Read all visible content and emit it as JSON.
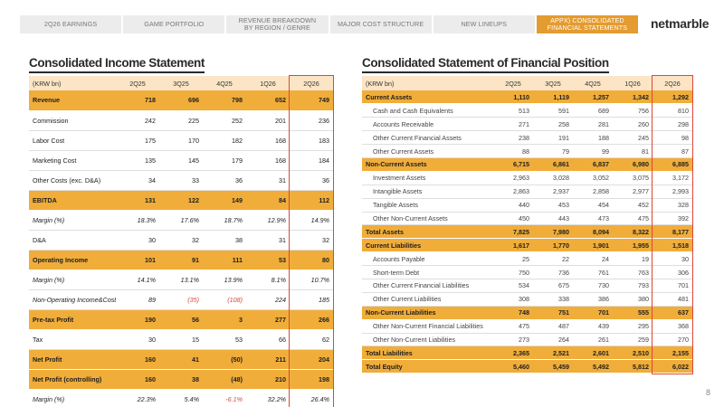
{
  "nav": {
    "tabs": [
      {
        "label": "2Q26  EARNINGS",
        "active": false
      },
      {
        "label": "GAME PORTFOLIO",
        "active": false
      },
      {
        "label": "REVENUE BREAKDOWN\nBY REGION / GENRE",
        "active": false
      },
      {
        "label": "MAJOR COST STRUCTURE",
        "active": false
      },
      {
        "label": "NEW LINEUPS",
        "active": false
      },
      {
        "label": "APPX) CONSOLIDATED\nFINANCIAL STATEMENTS",
        "active": true
      }
    ]
  },
  "logo": {
    "text": "netmarble",
    "icon": "netmarble-logo-icon",
    "color": "#e49b2f"
  },
  "income": {
    "title": "Consolidated Income Statement",
    "unit": "(KRW bn)",
    "columns": [
      "2Q25",
      "3Q25",
      "4Q25",
      "1Q26",
      "2Q26"
    ],
    "rows": [
      {
        "label": "Revenue",
        "values": [
          "718",
          "696",
          "798",
          "652",
          "749"
        ],
        "style": "hl"
      },
      {
        "label": "Commission",
        "values": [
          "242",
          "225",
          "252",
          "201",
          "236"
        ],
        "style": ""
      },
      {
        "label": "Labor Cost",
        "values": [
          "175",
          "170",
          "182",
          "168",
          "183"
        ],
        "style": ""
      },
      {
        "label": "Marketing Cost",
        "values": [
          "135",
          "145",
          "179",
          "168",
          "184"
        ],
        "style": ""
      },
      {
        "label": "Other Costs (exc. D&A)",
        "values": [
          "34",
          "33",
          "36",
          "31",
          "36"
        ],
        "style": ""
      },
      {
        "label": "EBITDA",
        "values": [
          "131",
          "122",
          "149",
          "84",
          "112"
        ],
        "style": "hl"
      },
      {
        "label": "Margin (%)",
        "values": [
          "18.3%",
          "17.6%",
          "18.7%",
          "12.9%",
          "14.9%"
        ],
        "style": "ital"
      },
      {
        "label": "D&A",
        "values": [
          "30",
          "32",
          "38",
          "31",
          "32"
        ],
        "style": ""
      },
      {
        "label": "Operating Income",
        "values": [
          "101",
          "91",
          "111",
          "53",
          "80"
        ],
        "style": "hl"
      },
      {
        "label": "Margin (%)",
        "values": [
          "14.1%",
          "13.1%",
          "13.9%",
          "8.1%",
          "10.7%"
        ],
        "style": "ital"
      },
      {
        "label": "Non-Operating Income&Cost",
        "values": [
          "89",
          "(35)",
          "(108)",
          "224",
          "185"
        ],
        "style": "ital"
      },
      {
        "label": "Pre-tax Profit",
        "values": [
          "190",
          "56",
          "3",
          "277",
          "266"
        ],
        "style": "hl"
      },
      {
        "label": "Tax",
        "values": [
          "30",
          "15",
          "53",
          "66",
          "62"
        ],
        "style": ""
      },
      {
        "label": "Net Profit",
        "values": [
          "160",
          "41",
          "(50)",
          "211",
          "204"
        ],
        "style": "hl"
      },
      {
        "label": "Net Profit (controlling)",
        "values": [
          "160",
          "38",
          "(48)",
          "210",
          "198"
        ],
        "style": "hl"
      },
      {
        "label": "Margin (%)",
        "values": [
          "22.3%",
          "5.4%",
          "-6.1%",
          "32.2%",
          "26.4%"
        ],
        "style": "ital"
      }
    ]
  },
  "balance": {
    "title": "Consolidated Statement of Financial Position",
    "unit": "(KRW bn)",
    "columns": [
      "2Q25",
      "3Q25",
      "4Q25",
      "1Q26",
      "2Q26"
    ],
    "rows": [
      {
        "label": "Current Assets",
        "values": [
          "1,110",
          "1,119",
          "1,257",
          "1,342",
          "1,292"
        ],
        "style": "hl"
      },
      {
        "label": "Cash and Cash Equivalents",
        "values": [
          "513",
          "591",
          "689",
          "756",
          "810"
        ],
        "style": "sub"
      },
      {
        "label": "Accounts Receivable",
        "values": [
          "271",
          "258",
          "281",
          "260",
          "298"
        ],
        "style": "sub"
      },
      {
        "label": "Other Current Financial Assets",
        "values": [
          "238",
          "191",
          "188",
          "245",
          "98"
        ],
        "style": "sub"
      },
      {
        "label": "Other Current Assets",
        "values": [
          "88",
          "79",
          "99",
          "81",
          "87"
        ],
        "style": "sub"
      },
      {
        "label": "Non-Current Assets",
        "values": [
          "6,715",
          "6,861",
          "6,837",
          "6,980",
          "6,885"
        ],
        "style": "hl"
      },
      {
        "label": "Investment Assets",
        "values": [
          "2,963",
          "3,028",
          "3,052",
          "3,075",
          "3,172"
        ],
        "style": "sub"
      },
      {
        "label": "Intangible Assets",
        "values": [
          "2,863",
          "2,937",
          "2,858",
          "2,977",
          "2,993"
        ],
        "style": "sub"
      },
      {
        "label": "Tangible Assets",
        "values": [
          "440",
          "453",
          "454",
          "452",
          "328"
        ],
        "style": "sub"
      },
      {
        "label": "Other Non-Current Assets",
        "values": [
          "450",
          "443",
          "473",
          "475",
          "392"
        ],
        "style": "sub"
      },
      {
        "label": "Total Assets",
        "values": [
          "7,825",
          "7,980",
          "8,094",
          "8,322",
          "8,177"
        ],
        "style": "hl"
      },
      {
        "label": "Current Liabilities",
        "values": [
          "1,617",
          "1,770",
          "1,901",
          "1,955",
          "1,518"
        ],
        "style": "hl"
      },
      {
        "label": "Accounts Payable",
        "values": [
          "25",
          "22",
          "24",
          "19",
          "30"
        ],
        "style": "sub"
      },
      {
        "label": "Short-term Debt",
        "values": [
          "750",
          "736",
          "761",
          "763",
          "306"
        ],
        "style": "sub"
      },
      {
        "label": "Other Current Financial Liabilities",
        "values": [
          "534",
          "675",
          "730",
          "793",
          "701"
        ],
        "style": "sub"
      },
      {
        "label": "Other Current Liabilities",
        "values": [
          "308",
          "338",
          "386",
          "380",
          "481"
        ],
        "style": "sub"
      },
      {
        "label": "Non-Current Liabilities",
        "values": [
          "748",
          "751",
          "701",
          "555",
          "637"
        ],
        "style": "hl"
      },
      {
        "label": "Other Non-Current Financial Liabilities",
        "values": [
          "475",
          "487",
          "439",
          "295",
          "368"
        ],
        "style": "sub"
      },
      {
        "label": "Other Non-Current Liabilities",
        "values": [
          "273",
          "264",
          "261",
          "259",
          "270"
        ],
        "style": "sub"
      },
      {
        "label": "Total Liabilities",
        "values": [
          "2,365",
          "2,521",
          "2,601",
          "2,510",
          "2,155"
        ],
        "style": "hl"
      },
      {
        "label": "Total Equity",
        "values": [
          "5,460",
          "5,459",
          "5,492",
          "5,812",
          "6,022"
        ],
        "style": "hl"
      }
    ]
  },
  "colors": {
    "accent": "#e49b2f",
    "row_highlight": "#f0ad3a",
    "header": "#fbe5c6",
    "negative": "#d9483b",
    "box": "#d9483b"
  },
  "page_number": "8"
}
